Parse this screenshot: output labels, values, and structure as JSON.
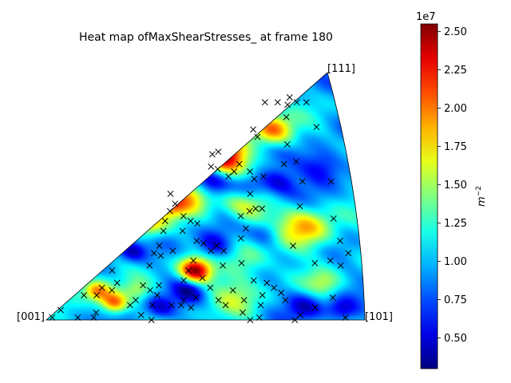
{
  "chart_data": {
    "type": "heatmap",
    "projection": "inverse pole figure (stereographic standard triangle)",
    "title": "Heat map ofMaxShearStresses_ at frame 180",
    "vertex_labels": {
      "origin": "[001]",
      "right": "[101]",
      "top": "[111]"
    },
    "colormap": "jet",
    "colorbar": {
      "label": "m^{-2}",
      "label_base": "m",
      "label_exp": "−2",
      "offset_text": "1e7",
      "range": [
        0.3,
        2.55
      ],
      "ticks": [
        0.5,
        0.75,
        1.0,
        1.25,
        1.5,
        1.75,
        2.0,
        2.25,
        2.5
      ],
      "tick_labels": [
        "0.50",
        "0.75",
        "1.00",
        "1.25",
        "1.50",
        "1.75",
        "2.00",
        "2.25",
        "2.50"
      ]
    },
    "background_level": 1.0,
    "hotspots": [
      {
        "u": 0.63,
        "v": 0.66,
        "value": 2.55,
        "spread": 0.055
      },
      {
        "u": 0.8,
        "v": 0.77,
        "value": 2.05,
        "spread": 0.045
      },
      {
        "u": 0.49,
        "v": 0.2,
        "value": 2.5,
        "spread": 0.035
      },
      {
        "u": 0.17,
        "v": 0.12,
        "value": 2.0,
        "spread": 0.03
      },
      {
        "u": 0.22,
        "v": 0.07,
        "value": 2.15,
        "spread": 0.03
      },
      {
        "u": 0.86,
        "v": 0.37,
        "value": 1.85,
        "spread": 0.06
      },
      {
        "u": 0.51,
        "v": 0.51,
        "value": 1.85,
        "spread": 0.05
      },
      {
        "u": 0.68,
        "v": 0.46,
        "value": 1.7,
        "spread": 0.05
      },
      {
        "u": 0.37,
        "v": 0.39,
        "value": 1.8,
        "spread": 0.04
      },
      {
        "u": 0.44,
        "v": 0.46,
        "value": 1.7,
        "spread": 0.035
      },
      {
        "u": 0.66,
        "v": 0.24,
        "value": 1.5,
        "spread": 0.05
      },
      {
        "u": 0.6,
        "v": 0.1,
        "value": 1.4,
        "spread": 0.06
      },
      {
        "u": 0.89,
        "v": 0.15,
        "value": 1.45,
        "spread": 0.04
      },
      {
        "u": 0.3,
        "v": 0.12,
        "value": 1.4,
        "spread": 0.03
      },
      {
        "u": 0.58,
        "v": 0.56,
        "value": 0.3,
        "spread": 0.045
      },
      {
        "u": 0.7,
        "v": 0.54,
        "value": 0.4,
        "spread": 0.04
      },
      {
        "u": 0.56,
        "v": 0.3,
        "value": 0.4,
        "spread": 0.04
      },
      {
        "u": 0.79,
        "v": 0.56,
        "value": 0.5,
        "spread": 0.04
      },
      {
        "u": 0.82,
        "v": 0.06,
        "value": 0.5,
        "spread": 0.04
      },
      {
        "u": 0.46,
        "v": 0.12,
        "value": 0.5,
        "spread": 0.035
      },
      {
        "u": 0.36,
        "v": 0.05,
        "value": 0.5,
        "spread": 0.035
      },
      {
        "u": 0.73,
        "v": 0.35,
        "value": 0.6,
        "spread": 0.035
      },
      {
        "u": 0.3,
        "v": 0.28,
        "value": 0.5,
        "spread": 0.03
      },
      {
        "u": 0.94,
        "v": 0.62,
        "value": 0.4,
        "spread": 0.05
      },
      {
        "u": 0.93,
        "v": 0.04,
        "value": 0.5,
        "spread": 0.035
      }
    ],
    "markers": {
      "symbol": "x",
      "color": "#000000",
      "orientations": [
        [
          0.02,
          0.01
        ],
        [
          0.05,
          0.04
        ],
        [
          0.1,
          0.01
        ],
        [
          0.15,
          0.01
        ],
        [
          0.16,
          0.03
        ],
        [
          0.13,
          0.1
        ],
        [
          0.17,
          0.1
        ],
        [
          0.19,
          0.13
        ],
        [
          0.22,
          0.12
        ],
        [
          0.24,
          0.15
        ],
        [
          0.23,
          0.2
        ],
        [
          0.27,
          0.06
        ],
        [
          0.29,
          0.08
        ],
        [
          0.3,
          0.02
        ],
        [
          0.33,
          0.0
        ],
        [
          0.34,
          0.06
        ],
        [
          0.32,
          0.14
        ],
        [
          0.34,
          0.12
        ],
        [
          0.36,
          0.1
        ],
        [
          0.37,
          0.14
        ],
        [
          0.35,
          0.22
        ],
        [
          0.37,
          0.27
        ],
        [
          0.39,
          0.3
        ],
        [
          0.4,
          0.06
        ],
        [
          0.43,
          0.06
        ],
        [
          0.44,
          0.08
        ],
        [
          0.46,
          0.05
        ],
        [
          0.48,
          0.09
        ],
        [
          0.45,
          0.16
        ],
        [
          0.47,
          0.2
        ],
        [
          0.49,
          0.24
        ],
        [
          0.51,
          0.17
        ],
        [
          0.53,
          0.13
        ],
        [
          0.55,
          0.08
        ],
        [
          0.57,
          0.06
        ],
        [
          0.41,
          0.36
        ],
        [
          0.42,
          0.4
        ],
        [
          0.44,
          0.44
        ],
        [
          0.46,
          0.47
        ],
        [
          0.45,
          0.51
        ],
        [
          0.48,
          0.42
        ],
        [
          0.5,
          0.4
        ],
        [
          0.52,
          0.39
        ],
        [
          0.51,
          0.32
        ],
        [
          0.53,
          0.31
        ],
        [
          0.55,
          0.28
        ],
        [
          0.57,
          0.3
        ],
        [
          0.59,
          0.28
        ],
        [
          0.58,
          0.22
        ],
        [
          0.6,
          0.12
        ],
        [
          0.63,
          0.08
        ],
        [
          0.62,
          0.03
        ],
        [
          0.64,
          0.0
        ],
        [
          0.67,
          0.01
        ],
        [
          0.68,
          0.06
        ],
        [
          0.69,
          0.1
        ],
        [
          0.67,
          0.16
        ],
        [
          0.64,
          0.23
        ],
        [
          0.65,
          0.33
        ],
        [
          0.67,
          0.37
        ],
        [
          0.66,
          0.42
        ],
        [
          0.69,
          0.44
        ],
        [
          0.71,
          0.45
        ],
        [
          0.73,
          0.45
        ],
        [
          0.7,
          0.51
        ],
        [
          0.71,
          0.6
        ],
        [
          0.72,
          0.57
        ],
        [
          0.75,
          0.58
        ],
        [
          0.64,
          0.58
        ],
        [
          0.61,
          0.61
        ],
        [
          0.59,
          0.62
        ],
        [
          0.6,
          0.67
        ],
        [
          0.62,
          0.68
        ],
        [
          0.66,
          0.6
        ],
        [
          0.68,
          0.63
        ],
        [
          0.71,
          0.15
        ],
        [
          0.73,
          0.13
        ],
        [
          0.75,
          0.11
        ],
        [
          0.76,
          0.08
        ],
        [
          0.8,
          0.02
        ],
        [
          0.78,
          0.0
        ],
        [
          0.85,
          0.05
        ],
        [
          0.91,
          0.09
        ],
        [
          0.94,
          0.01
        ],
        [
          0.92,
          0.24
        ],
        [
          0.95,
          0.22
        ],
        [
          0.98,
          0.27
        ],
        [
          0.96,
          0.32
        ],
        [
          0.87,
          0.23
        ],
        [
          0.81,
          0.3
        ],
        [
          0.85,
          0.46
        ],
        [
          0.87,
          0.56
        ],
        [
          0.82,
          0.63
        ],
        [
          0.86,
          0.64
        ],
        [
          0.84,
          0.71
        ],
        [
          0.74,
          0.77
        ],
        [
          0.75,
          0.74
        ],
        [
          0.85,
          0.82
        ],
        [
          0.86,
          0.87
        ],
        [
          0.89,
          0.88
        ],
        [
          0.87,
          0.9
        ],
        [
          0.92,
          0.88
        ],
        [
          0.94,
          0.78
        ],
        [
          0.96,
          0.56
        ],
        [
          0.95,
          0.41
        ],
        [
          0.83,
          0.88
        ],
        [
          0.79,
          0.88
        ],
        [
          0.47,
          0.36
        ],
        [
          0.43,
          0.28
        ],
        [
          0.39,
          0.26
        ]
      ]
    }
  }
}
